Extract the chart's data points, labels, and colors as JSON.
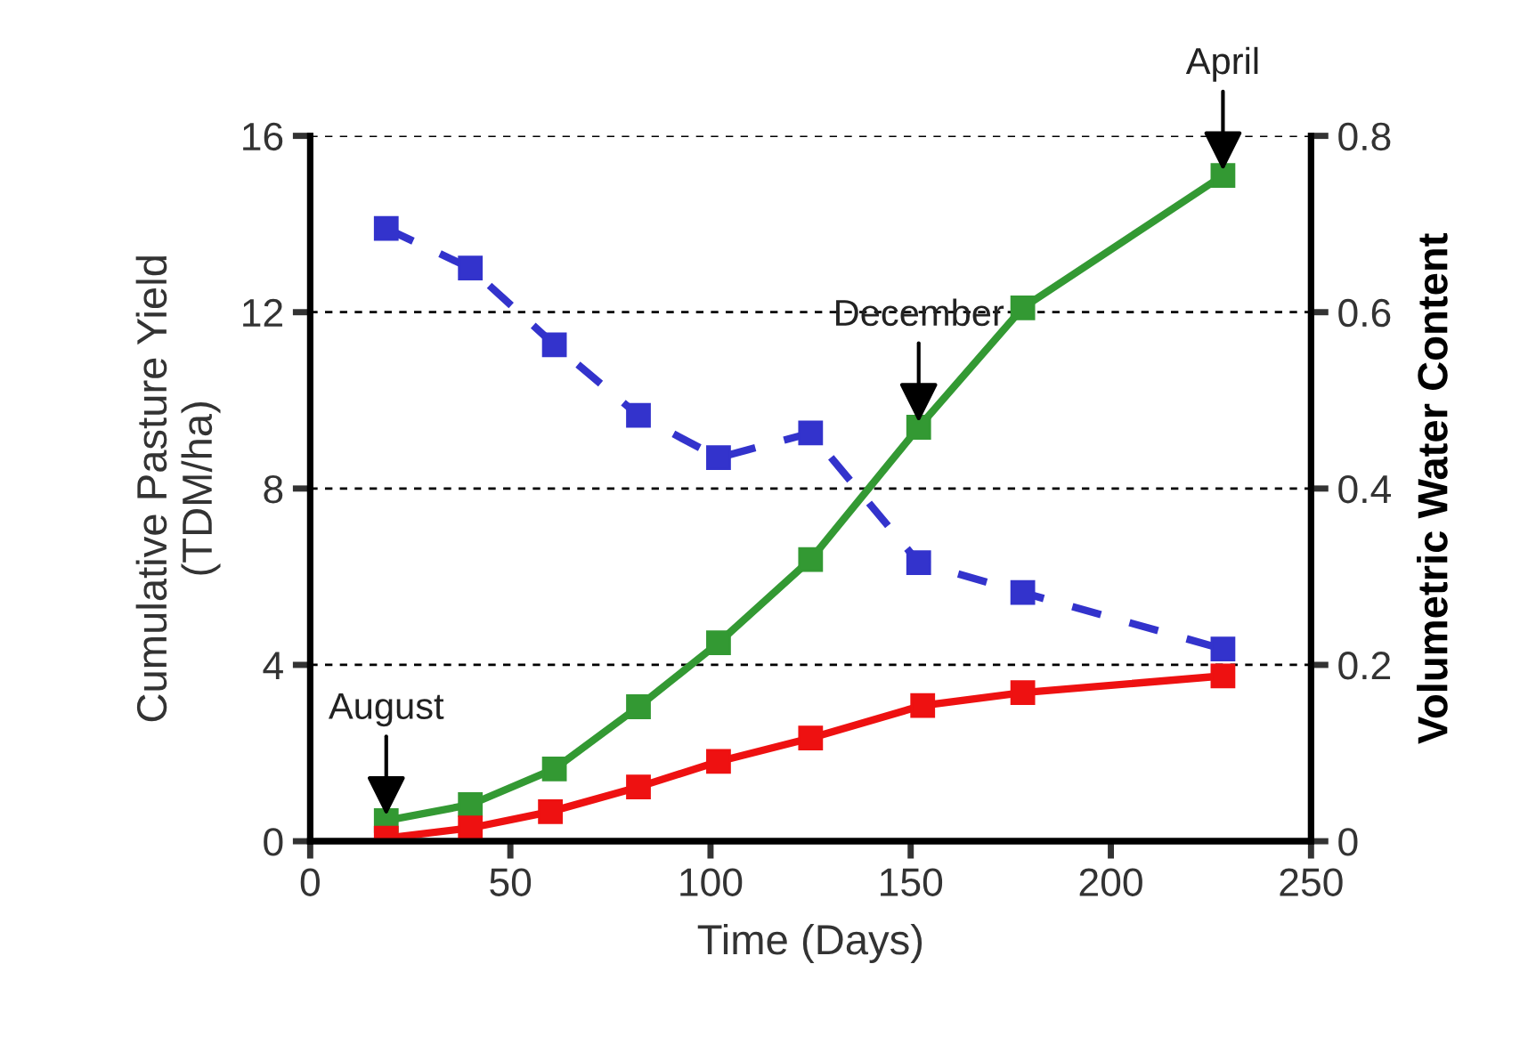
{
  "chart_data": {
    "type": "line",
    "xlabel": "Time (Days)",
    "ylabel": "Cumulative Pasture Yield\n(TDM/ha)",
    "y2label": "Volumetric Water Content",
    "xlim": [
      0,
      250
    ],
    "xticks": [
      0,
      50,
      100,
      150,
      200,
      250
    ],
    "ylim": [
      0,
      16
    ],
    "yticks": [
      0,
      4,
      8,
      12,
      16
    ],
    "y2lim": [
      0,
      0.8
    ],
    "y2ticks": [
      0,
      0.2,
      0.4,
      0.6,
      0.8
    ],
    "grid": "y",
    "marker": "square",
    "series": [
      {
        "color": "#3333cc",
        "axis": "y2",
        "line_style": "dashed",
        "x": [
          19,
          40,
          61,
          82,
          102,
          125,
          152,
          178,
          228
        ],
        "values": [
          0.695,
          0.65,
          0.563,
          0.483,
          0.435,
          0.463,
          0.316,
          0.282,
          0.218
        ]
      },
      {
        "color": "#339933",
        "line_style": "solid",
        "x": [
          19,
          40,
          61,
          82,
          102,
          125,
          152,
          178,
          228
        ],
        "values": [
          0.47,
          0.83,
          1.64,
          3.05,
          4.5,
          6.39,
          9.39,
          12.1,
          15.1
        ]
      },
      {
        "color": "#ee1111",
        "line_style": "solid",
        "x": [
          19,
          40,
          60,
          82,
          102,
          125,
          153,
          178,
          228
        ],
        "values": [
          0.07,
          0.3,
          0.67,
          1.23,
          1.81,
          2.34,
          3.08,
          3.37,
          3.75
        ]
      }
    ],
    "annotations": [
      {
        "text": "August",
        "x": 19,
        "y": 0.47
      },
      {
        "text": "December",
        "x": 152,
        "y": 9.39
      },
      {
        "text": "April",
        "x": 228,
        "y": 15.1
      }
    ]
  }
}
